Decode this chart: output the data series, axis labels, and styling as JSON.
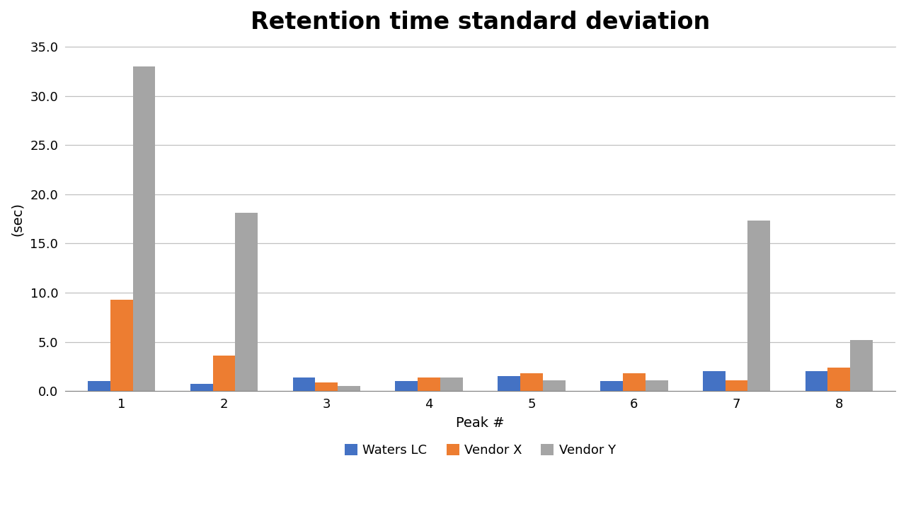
{
  "title": "Retention time standard deviation",
  "xlabel": "Peak #",
  "ylabel": "(sec)",
  "categories": [
    1,
    2,
    3,
    4,
    5,
    6,
    7,
    8
  ],
  "waters_lc": [
    1.0,
    0.7,
    1.4,
    1.0,
    1.5,
    1.0,
    2.0,
    2.0
  ],
  "vendor_x": [
    9.3,
    3.6,
    0.9,
    1.4,
    1.8,
    1.8,
    1.1,
    2.4
  ],
  "vendor_y": [
    33.0,
    18.1,
    0.5,
    1.4,
    1.1,
    1.1,
    17.3,
    5.2
  ],
  "colors": {
    "waters_lc": "#4472C4",
    "vendor_x": "#ED7D31",
    "vendor_y": "#A5A5A5"
  },
  "legend_labels": [
    "Waters LC",
    "Vendor X",
    "Vendor Y"
  ],
  "ylim": [
    0.0,
    35.0
  ],
  "yticks": [
    0.0,
    5.0,
    10.0,
    15.0,
    20.0,
    25.0,
    30.0,
    35.0
  ],
  "title_fontsize": 24,
  "axis_label_fontsize": 14,
  "tick_fontsize": 13,
  "legend_fontsize": 13,
  "bar_width": 0.22,
  "background_color": "#FFFFFF",
  "grid_color": "#C0C0C0",
  "spine_color": "#808080"
}
